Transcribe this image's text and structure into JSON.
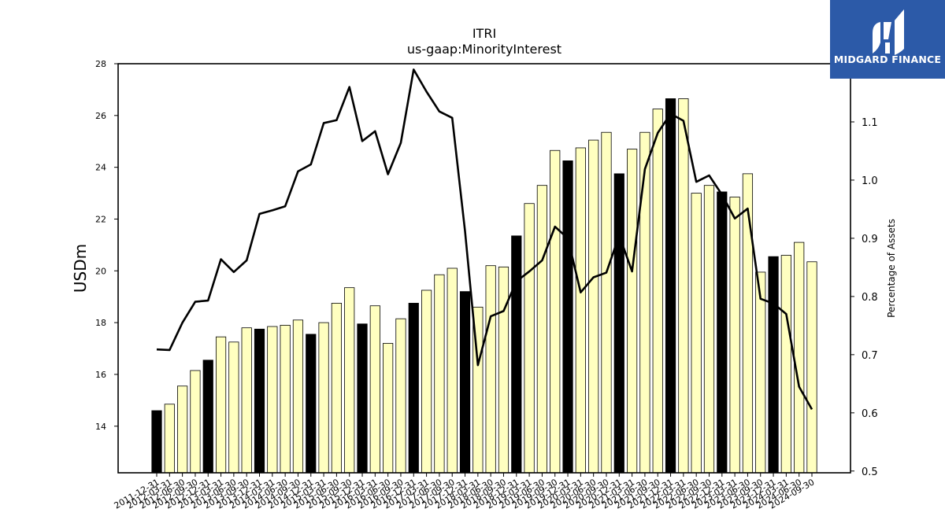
{
  "chart_data": {
    "type": "bar",
    "title": "ITRI",
    "subtitle": "us-gaap:MinorityInterest",
    "ylabel": "USDm",
    "y2label": "Percentage of Assets",
    "ylim": [
      12.2,
      28
    ],
    "y2lim": [
      0.497,
      1.2
    ],
    "yticks": [
      14,
      16,
      18,
      20,
      22,
      24,
      26,
      28
    ],
    "y2ticks": [
      0.5,
      0.6,
      0.7,
      0.8,
      0.9,
      1.0,
      1.1
    ],
    "grid": false,
    "categories": [
      "2011-12-31",
      "2012-03-31",
      "2012-06-30",
      "2012-09-30",
      "2012-12-31",
      "2013-03-31",
      "2013-06-30",
      "2013-09-30",
      "2013-12-31",
      "2014-03-31",
      "2014-06-30",
      "2014-09-30",
      "2014-12-31",
      "2015-03-31",
      "2015-06-30",
      "2015-09-30",
      "2015-12-31",
      "2016-03-31",
      "2016-06-30",
      "2016-09-30",
      "2016-12-31",
      "2017-03-31",
      "2017-06-30",
      "2017-09-30",
      "2017-12-31",
      "2018-03-31",
      "2018-06-30",
      "2018-09-30",
      "2018-12-31",
      "2019-03-31",
      "2019-06-30",
      "2019-09-30",
      "2019-12-31",
      "2020-03-31",
      "2020-06-30",
      "2020-09-30",
      "2020-12-31",
      "2021-03-31",
      "2021-06-30",
      "2021-09-30",
      "2021-12-31",
      "2022-03-31",
      "2022-06-30",
      "2022-09-30",
      "2022-12-31",
      "2023-03-31",
      "2023-06-30",
      "2023-09-30",
      "2023-12-31",
      "2024-03-31",
      "2024-06-30",
      "2024-09-30"
    ],
    "series": [
      {
        "kind": "bar",
        "values": [
          14.6,
          14.85,
          15.55,
          16.15,
          16.55,
          17.45,
          17.25,
          17.8,
          17.75,
          17.85,
          17.9,
          18.1,
          17.55,
          18.0,
          18.75,
          19.35,
          17.95,
          18.65,
          17.2,
          18.15,
          18.75,
          19.25,
          19.85,
          20.1,
          19.2,
          18.6,
          20.2,
          20.15,
          21.35,
          22.6,
          23.3,
          24.65,
          24.25,
          24.75,
          25.05,
          25.35,
          23.75,
          24.7,
          25.35,
          26.25,
          26.65,
          26.65,
          23.0,
          23.3,
          23.05,
          22.85,
          23.75,
          19.95,
          20.55,
          20.6,
          21.1,
          20.35
        ],
        "highlight": [
          true,
          false,
          false,
          false,
          true,
          false,
          false,
          false,
          true,
          false,
          false,
          false,
          true,
          false,
          false,
          false,
          true,
          false,
          false,
          false,
          true,
          false,
          false,
          false,
          true,
          false,
          false,
          false,
          true,
          false,
          false,
          false,
          true,
          false,
          false,
          false,
          true,
          false,
          false,
          false,
          true,
          false,
          false,
          false,
          true,
          false,
          false,
          false,
          true,
          false,
          false,
          false
        ],
        "color": "#ffffc0",
        "highlight_color": "#000000"
      },
      {
        "kind": "line",
        "axis": "right",
        "color": "#000000",
        "values": [
          0.709,
          0.708,
          0.755,
          0.791,
          0.793,
          0.864,
          0.842,
          0.862,
          0.942,
          0.948,
          0.955,
          1.015,
          1.027,
          1.098,
          1.103,
          1.16,
          1.067,
          1.084,
          1.01,
          1.064,
          1.19,
          1.152,
          1.118,
          1.107,
          0.912,
          0.682,
          0.766,
          0.775,
          0.826,
          0.843,
          0.862,
          0.92,
          0.9,
          0.807,
          0.833,
          0.841,
          0.905,
          0.843,
          1.019,
          1.081,
          1.114,
          1.102,
          0.997,
          1.008,
          0.975,
          0.934,
          0.951,
          0.796,
          0.788,
          0.77,
          0.645,
          0.606
        ]
      }
    ]
  },
  "logo": {
    "text": "MIDGARD FINANCE"
  }
}
